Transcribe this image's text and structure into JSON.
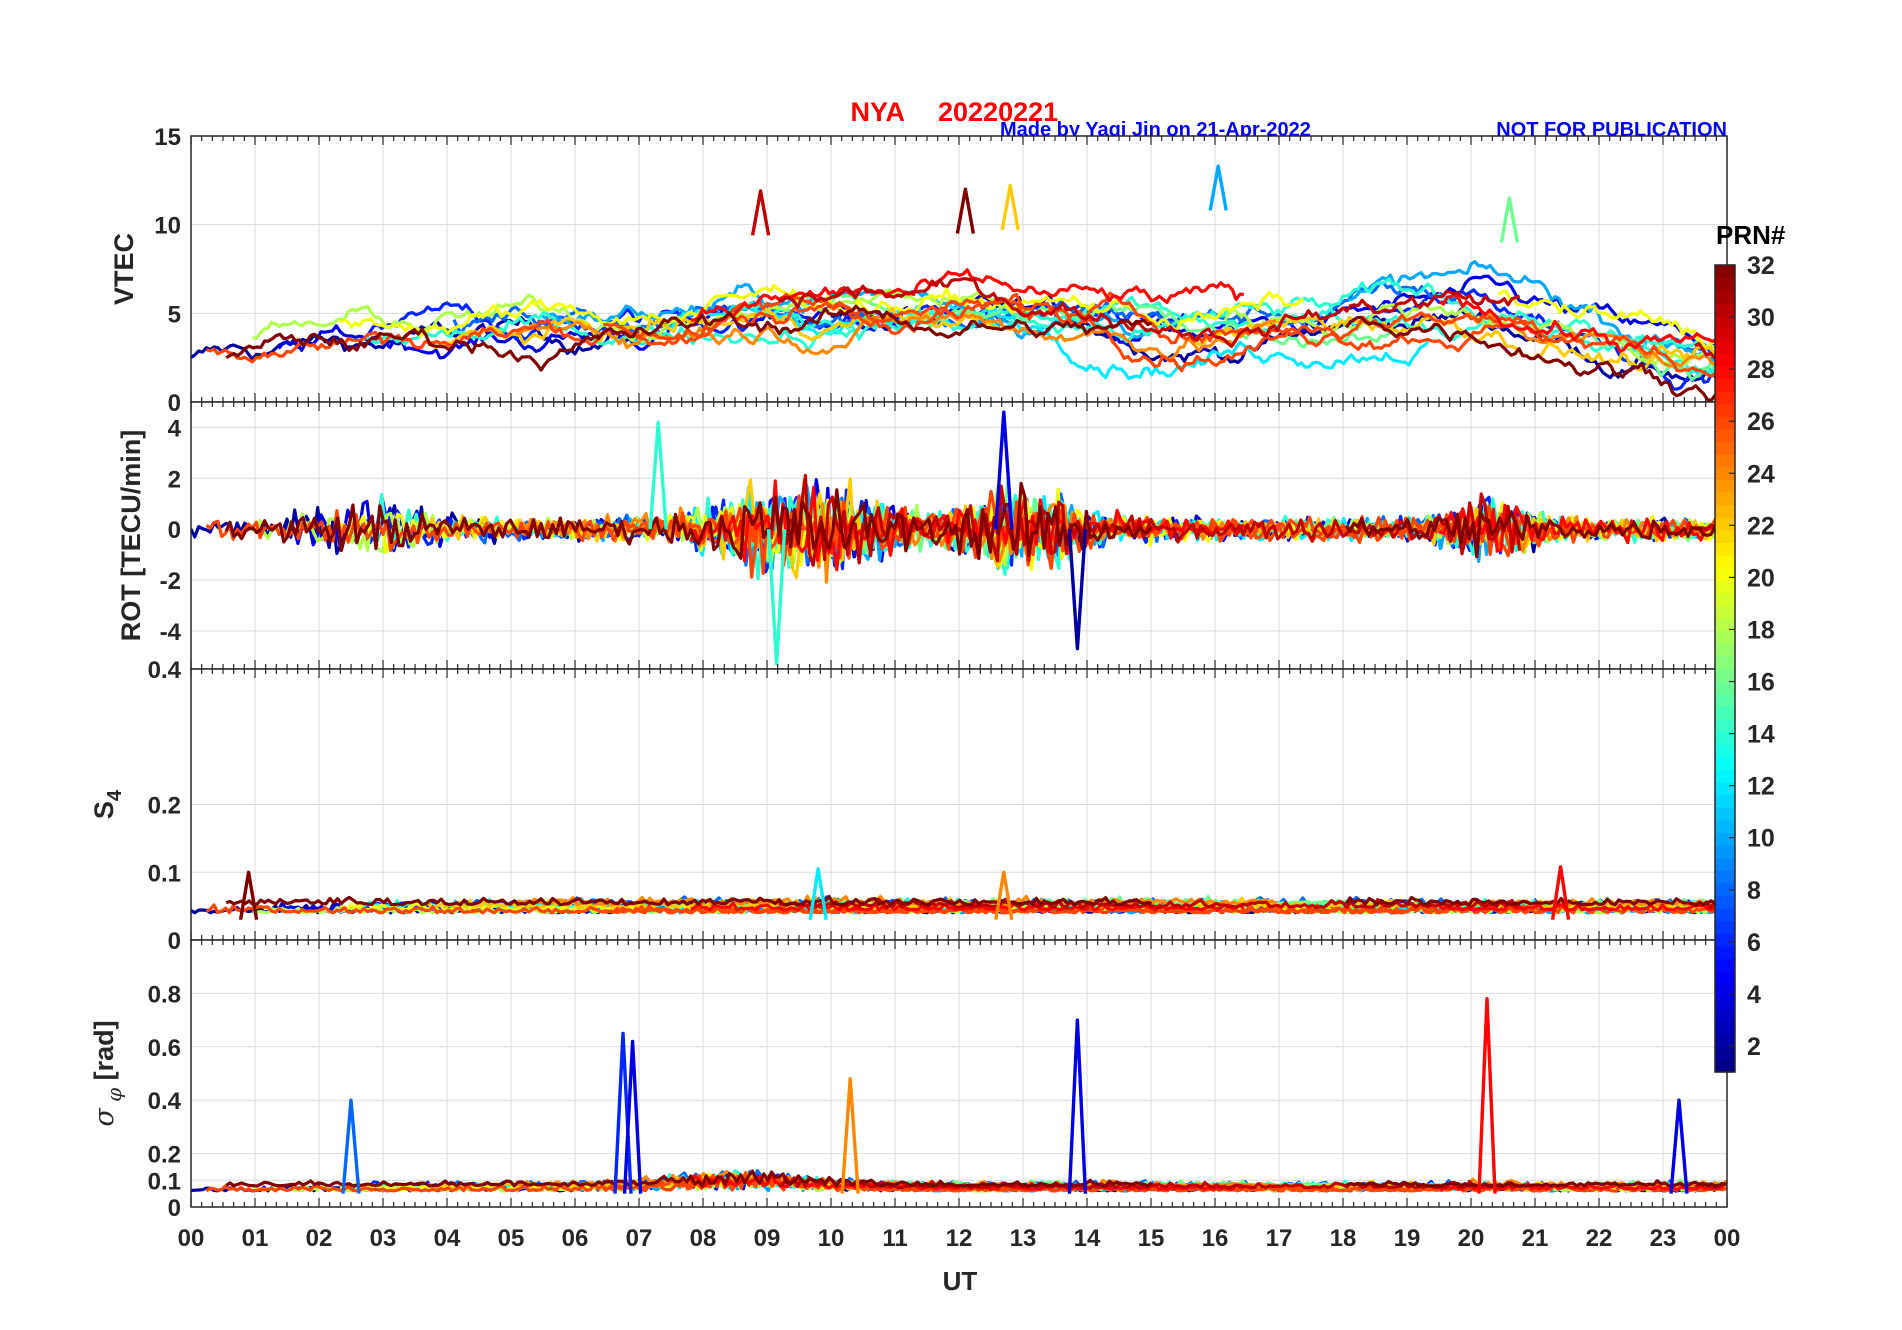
{
  "header": {
    "station": "NYA",
    "date": "20220221",
    "credit": "Made by Yaqi Jin on 21-Apr-2022",
    "notice": "NOT FOR PUBLICATION"
  },
  "colors": {
    "title_red": "#ff0000",
    "credit_blue": "#0000ff",
    "axis": "#262626",
    "grid": "#dcdcdc"
  },
  "chart_data": {
    "type": "line",
    "title": "NYA   20220221",
    "xlabel": "UT",
    "x_range_hours": [
      0,
      24
    ],
    "x_tick_labels": [
      "00",
      "01",
      "02",
      "03",
      "04",
      "05",
      "06",
      "07",
      "08",
      "09",
      "10",
      "11",
      "12",
      "13",
      "14",
      "15",
      "16",
      "17",
      "18",
      "19",
      "20",
      "21",
      "22",
      "23",
      "00"
    ],
    "panels": [
      {
        "id": "vtec",
        "ylabel": "VTEC",
        "ylim": [
          0,
          15
        ],
        "yticks": [
          0,
          5,
          10,
          15
        ],
        "ytick_labels": [
          "0",
          "5",
          "10",
          "15"
        ],
        "typical_range": [
          1,
          13
        ],
        "peaks": [
          {
            "ut": 16.05,
            "value": 13.3,
            "prn": 10
          },
          {
            "ut": 12.8,
            "value": 12.2,
            "prn": 22
          },
          {
            "ut": 12.1,
            "value": 12.0,
            "prn": 32
          },
          {
            "ut": 8.9,
            "value": 11.9,
            "prn": 30
          },
          {
            "ut": 20.6,
            "value": 11.5,
            "prn": 16
          }
        ]
      },
      {
        "id": "rot",
        "ylabel": "ROT [TECU/min]",
        "ylim": [
          -5.5,
          5
        ],
        "yticks": [
          -4,
          -2,
          0,
          2,
          4
        ],
        "ytick_labels": [
          "-4",
          "-2",
          "0",
          "2",
          "4"
        ],
        "typical_range": [
          -1,
          1
        ],
        "extremes": [
          {
            "ut": 9.15,
            "value": -5.3,
            "prn": 14
          },
          {
            "ut": 12.7,
            "value": 4.6,
            "prn": 4
          },
          {
            "ut": 13.85,
            "value": -4.7,
            "prn": 2
          },
          {
            "ut": 7.3,
            "value": 4.2,
            "prn": 14
          }
        ]
      },
      {
        "id": "s4",
        "ylabel": "S4",
        "ylim": [
          0,
          0.4
        ],
        "yticks": [
          0,
          0.1,
          0.2,
          0.4
        ],
        "ytick_labels": [
          "0",
          "0.1",
          "0.2",
          "0.4"
        ],
        "typical_range": [
          0.03,
          0.06
        ],
        "peaks": [
          {
            "ut": 21.4,
            "value": 0.108,
            "prn": 28
          },
          {
            "ut": 9.8,
            "value": 0.105,
            "prn": 12
          },
          {
            "ut": 0.9,
            "value": 0.1,
            "prn": 32
          },
          {
            "ut": 12.7,
            "value": 0.1,
            "prn": 24
          }
        ]
      },
      {
        "id": "sigma_phi",
        "ylabel": "σ φ [rad]",
        "ylim": [
          0,
          1
        ],
        "yticks": [
          0,
          0.1,
          0.2,
          0.4,
          0.6,
          0.8
        ],
        "ytick_labels": [
          "0",
          "0.1",
          "0.2",
          "0.4",
          "0.6",
          "0.8"
        ],
        "typical_range": [
          0.05,
          0.1
        ],
        "peaks": [
          {
            "ut": 20.25,
            "value": 0.78,
            "prn": 28
          },
          {
            "ut": 13.85,
            "value": 0.7,
            "prn": 4
          },
          {
            "ut": 6.75,
            "value": 0.65,
            "prn": 6
          },
          {
            "ut": 6.9,
            "value": 0.62,
            "prn": 4
          },
          {
            "ut": 10.3,
            "value": 0.48,
            "prn": 24
          },
          {
            "ut": 23.25,
            "value": 0.4,
            "prn": 4
          },
          {
            "ut": 2.5,
            "value": 0.4,
            "prn": 8
          }
        ]
      }
    ],
    "colorbar": {
      "label": "PRN#",
      "range": [
        1,
        32
      ],
      "ticks": [
        2,
        4,
        6,
        8,
        10,
        12,
        14,
        16,
        18,
        20,
        22,
        24,
        26,
        28,
        30,
        32
      ],
      "tick_labels": [
        "2",
        "4",
        "6",
        "8",
        "10",
        "12",
        "14",
        "16",
        "18",
        "20",
        "22",
        "24",
        "26",
        "28",
        "30",
        "32"
      ],
      "colormap": "jet"
    },
    "series_prns": [
      2,
      4,
      6,
      8,
      10,
      12,
      14,
      16,
      18,
      20,
      22,
      24,
      26,
      28,
      30,
      32
    ]
  }
}
